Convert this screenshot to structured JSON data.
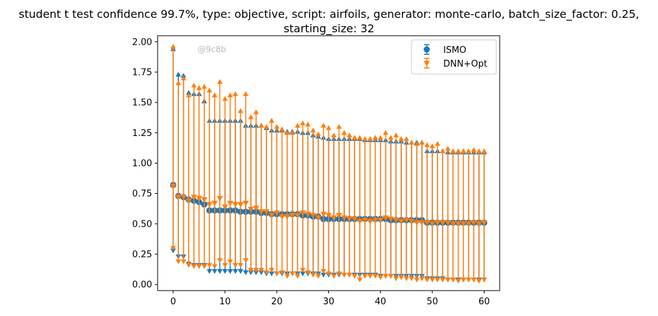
{
  "chart_data": {
    "type": "scatter",
    "title_line1": "student t test confidence 99.7%, type: objective, script: airfoils, generator: monte-carlo, batch_size_factor: 0.25,",
    "title_line2": "starting_size: 32",
    "watermark": "@9c8b",
    "xlim": [
      -3,
      63
    ],
    "ylim": [
      -0.05,
      2.05
    ],
    "x_ticks": [
      0,
      10,
      20,
      30,
      40,
      50,
      60
    ],
    "y_ticks": [
      "0.00",
      "0.25",
      "0.50",
      "0.75",
      "1.00",
      "1.25",
      "1.50",
      "1.75",
      "2.00"
    ],
    "grid": false,
    "legend": {
      "placement": "top-right"
    },
    "colors": {
      "ISMO": "#1f77b4",
      "DNN+Opt": "#ff7f0e"
    },
    "series": [
      {
        "name": "ISMO",
        "marker": "circle",
        "x": [
          0,
          1,
          2,
          3,
          4,
          5,
          6,
          7,
          8,
          9,
          10,
          11,
          12,
          13,
          14,
          15,
          16,
          17,
          18,
          19,
          20,
          21,
          22,
          23,
          24,
          25,
          26,
          27,
          28,
          29,
          30,
          31,
          32,
          33,
          34,
          35,
          36,
          37,
          38,
          39,
          40,
          41,
          42,
          43,
          44,
          45,
          46,
          47,
          48,
          49,
          50,
          51,
          52,
          53,
          54,
          55,
          56,
          57,
          58,
          59,
          60
        ],
        "mean": [
          0.82,
          0.73,
          0.72,
          0.7,
          0.69,
          0.68,
          0.66,
          0.61,
          0.61,
          0.61,
          0.61,
          0.61,
          0.61,
          0.6,
          0.6,
          0.6,
          0.6,
          0.59,
          0.59,
          0.58,
          0.58,
          0.58,
          0.58,
          0.58,
          0.58,
          0.57,
          0.57,
          0.56,
          0.56,
          0.54,
          0.54,
          0.54,
          0.54,
          0.54,
          0.54,
          0.54,
          0.54,
          0.54,
          0.54,
          0.54,
          0.54,
          0.54,
          0.53,
          0.53,
          0.53,
          0.53,
          0.53,
          0.53,
          0.53,
          0.51,
          0.51,
          0.51,
          0.51,
          0.51,
          0.51,
          0.51,
          0.51,
          0.51,
          0.51,
          0.51,
          0.51
        ],
        "lower": [
          0.28,
          0.23,
          0.23,
          0.17,
          0.16,
          0.16,
          0.16,
          0.11,
          0.11,
          0.11,
          0.11,
          0.11,
          0.11,
          0.11,
          0.1,
          0.1,
          0.1,
          0.1,
          0.09,
          0.09,
          0.09,
          0.09,
          0.09,
          0.09,
          0.09,
          0.09,
          0.09,
          0.09,
          0.09,
          0.08,
          0.08,
          0.08,
          0.08,
          0.08,
          0.08,
          0.08,
          0.08,
          0.08,
          0.08,
          0.08,
          0.07,
          0.07,
          0.07,
          0.07,
          0.07,
          0.07,
          0.07,
          0.07,
          0.07,
          0.05,
          0.05,
          0.05,
          0.05,
          0.04,
          0.04,
          0.04,
          0.04,
          0.04,
          0.04,
          0.04,
          0.04
        ],
        "upper": [
          1.94,
          1.73,
          1.72,
          1.58,
          1.57,
          1.57,
          1.51,
          1.35,
          1.35,
          1.35,
          1.35,
          1.35,
          1.35,
          1.35,
          1.31,
          1.31,
          1.31,
          1.31,
          1.29,
          1.27,
          1.27,
          1.27,
          1.26,
          1.26,
          1.26,
          1.25,
          1.25,
          1.23,
          1.22,
          1.21,
          1.2,
          1.2,
          1.2,
          1.2,
          1.2,
          1.2,
          1.2,
          1.19,
          1.19,
          1.19,
          1.19,
          1.19,
          1.18,
          1.18,
          1.18,
          1.17,
          1.17,
          1.17,
          1.17,
          1.1,
          1.1,
          1.1,
          1.1,
          1.09,
          1.09,
          1.09,
          1.09,
          1.09,
          1.09,
          1.09,
          1.09
        ]
      },
      {
        "name": "DNN+Opt",
        "marker": "triangle-down",
        "x": [
          0,
          1,
          2,
          3,
          4,
          5,
          6,
          7,
          8,
          9,
          10,
          11,
          12,
          13,
          14,
          15,
          16,
          17,
          18,
          19,
          20,
          21,
          22,
          23,
          24,
          25,
          26,
          27,
          28,
          29,
          30,
          31,
          32,
          33,
          34,
          35,
          36,
          37,
          38,
          39,
          40,
          41,
          42,
          43,
          44,
          45,
          46,
          47,
          48,
          49,
          50,
          51,
          52,
          53,
          54,
          55,
          56,
          57,
          58,
          59,
          60
        ],
        "mean": [
          0.81,
          0.72,
          0.72,
          0.69,
          0.72,
          0.71,
          0.7,
          0.66,
          0.67,
          0.71,
          0.64,
          0.67,
          0.66,
          0.66,
          0.67,
          0.62,
          0.63,
          0.6,
          0.6,
          0.57,
          0.59,
          0.56,
          0.56,
          0.57,
          0.57,
          0.59,
          0.58,
          0.57,
          0.55,
          0.58,
          0.57,
          0.55,
          0.57,
          0.55,
          0.54,
          0.54,
          0.52,
          0.53,
          0.52,
          0.53,
          0.53,
          0.55,
          0.54,
          0.53,
          0.52,
          0.53,
          0.52,
          0.51,
          0.51,
          0.51,
          0.5,
          0.51,
          0.51,
          0.51,
          0.5,
          0.5,
          0.5,
          0.5,
          0.51,
          0.5,
          0.51
        ],
        "lower": [
          0.3,
          0.19,
          0.19,
          0.16,
          0.15,
          0.15,
          0.15,
          0.16,
          0.15,
          0.2,
          0.16,
          0.19,
          0.16,
          0.16,
          0.2,
          0.12,
          0.12,
          0.12,
          0.1,
          0.12,
          0.09,
          0.1,
          0.07,
          0.09,
          0.07,
          0.12,
          0.1,
          0.08,
          0.07,
          0.11,
          0.09,
          0.07,
          0.09,
          0.08,
          0.08,
          0.07,
          0.04,
          0.07,
          0.07,
          0.07,
          0.06,
          0.07,
          0.07,
          0.05,
          0.06,
          0.05,
          0.05,
          0.04,
          0.05,
          0.04,
          0.04,
          0.04,
          0.04,
          0.04,
          0.04,
          0.03,
          0.04,
          0.04,
          0.04,
          0.03,
          0.04
        ],
        "upper": [
          1.96,
          1.66,
          1.7,
          1.56,
          1.64,
          1.62,
          1.63,
          1.6,
          1.56,
          1.67,
          1.53,
          1.56,
          1.57,
          1.43,
          1.57,
          1.38,
          1.42,
          1.31,
          1.3,
          1.35,
          1.3,
          1.28,
          1.25,
          1.25,
          1.31,
          1.33,
          1.32,
          1.27,
          1.24,
          1.31,
          1.29,
          1.23,
          1.3,
          1.25,
          1.23,
          1.21,
          1.21,
          1.2,
          1.2,
          1.21,
          1.21,
          1.25,
          1.21,
          1.23,
          1.2,
          1.2,
          1.17,
          1.16,
          1.17,
          1.15,
          1.14,
          1.16,
          1.1,
          1.12,
          1.1,
          1.1,
          1.1,
          1.1,
          1.11,
          1.1,
          1.1
        ]
      }
    ]
  }
}
